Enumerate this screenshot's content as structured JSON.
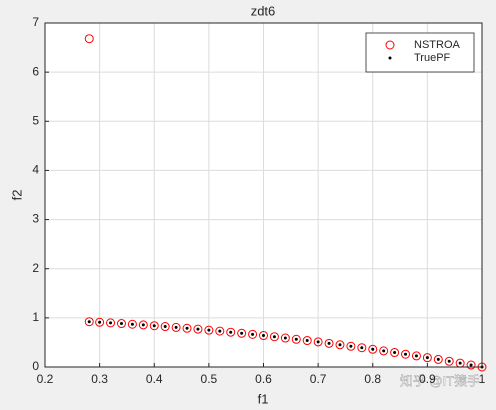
{
  "chart_data": {
    "type": "scatter",
    "title": "zdt6",
    "x_label": "f1",
    "y_label": "f2",
    "xlim": [
      0.2,
      1
    ],
    "xticks": [
      0.2,
      0.3,
      0.4,
      0.5,
      0.6,
      0.7,
      0.8,
      0.9,
      1
    ],
    "ylim": [
      0,
      7
    ],
    "yticks": [
      0,
      1,
      2,
      3,
      4,
      5,
      6,
      7
    ],
    "grid": true,
    "legend": "top-right",
    "watermark": "知乎 @IT猿手",
    "series": [
      {
        "name": "NSTROA",
        "color": "#ff0000",
        "marker": "circle",
        "x": [
          0.281,
          0.281,
          0.3,
          0.32,
          0.34,
          0.36,
          0.38,
          0.4,
          0.42,
          0.44,
          0.46,
          0.48,
          0.5,
          0.52,
          0.54,
          0.56,
          0.58,
          0.6,
          0.62,
          0.64,
          0.66,
          0.68,
          0.7,
          0.72,
          0.74,
          0.76,
          0.78,
          0.8,
          0.82,
          0.84,
          0.86,
          0.88,
          0.9,
          0.92,
          0.94,
          0.96,
          0.98,
          1.0
        ],
        "values": [
          6.68,
          0.921,
          0.91,
          0.898,
          0.884,
          0.87,
          0.856,
          0.84,
          0.824,
          0.806,
          0.788,
          0.77,
          0.75,
          0.73,
          0.708,
          0.686,
          0.664,
          0.64,
          0.616,
          0.59,
          0.564,
          0.538,
          0.51,
          0.482,
          0.452,
          0.422,
          0.392,
          0.36,
          0.328,
          0.294,
          0.26,
          0.226,
          0.19,
          0.154,
          0.116,
          0.078,
          0.04,
          0
        ]
      },
      {
        "name": "TruePF",
        "color": "#000000",
        "marker": "dot",
        "x": [
          0.281,
          0.3,
          0.32,
          0.34,
          0.36,
          0.38,
          0.4,
          0.42,
          0.44,
          0.46,
          0.48,
          0.5,
          0.52,
          0.54,
          0.56,
          0.58,
          0.6,
          0.62,
          0.64,
          0.66,
          0.68,
          0.7,
          0.72,
          0.74,
          0.76,
          0.78,
          0.8,
          0.82,
          0.84,
          0.86,
          0.88,
          0.9,
          0.92,
          0.94,
          0.96,
          0.98,
          1.0
        ],
        "values": [
          0.921,
          0.91,
          0.898,
          0.884,
          0.87,
          0.856,
          0.84,
          0.824,
          0.806,
          0.788,
          0.77,
          0.75,
          0.73,
          0.708,
          0.686,
          0.664,
          0.64,
          0.616,
          0.59,
          0.564,
          0.538,
          0.51,
          0.482,
          0.452,
          0.422,
          0.392,
          0.36,
          0.328,
          0.294,
          0.26,
          0.226,
          0.19,
          0.154,
          0.116,
          0.078,
          0.04,
          0
        ]
      }
    ]
  }
}
